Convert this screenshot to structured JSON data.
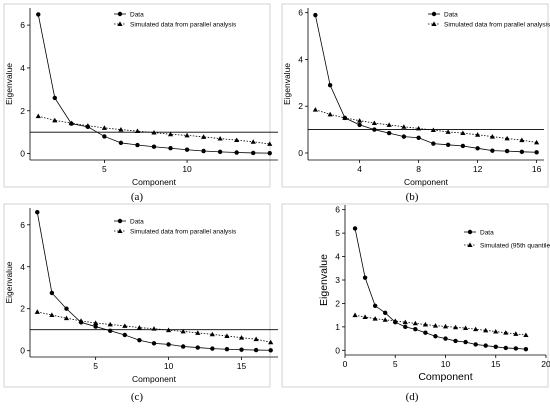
{
  "chart_data": [
    {
      "type": "scatter",
      "panel": "(a)",
      "caption": "(a)",
      "xlabel": "Component",
      "ylabel": "Eigenvalue",
      "xlim": [
        0.5,
        15.5
      ],
      "ylim": [
        -0.3,
        6.8
      ],
      "xticks": [
        5,
        10
      ],
      "yticks": [
        0,
        2,
        4,
        6
      ],
      "grid": false,
      "legend_position": "top-right",
      "reference_line": 1,
      "series": [
        {
          "name": "Data",
          "marker": "circle",
          "x": [
            1,
            2,
            3,
            4,
            5,
            6,
            7,
            8,
            9,
            10,
            11,
            12,
            13,
            14,
            15
          ],
          "y": [
            6.5,
            2.6,
            1.4,
            1.25,
            0.8,
            0.5,
            0.4,
            0.32,
            0.25,
            0.18,
            0.12,
            0.08,
            0.05,
            0.03,
            0.02
          ]
        },
        {
          "name": "Simulated data from parallel analysis",
          "marker": "triangle",
          "x": [
            1,
            2,
            3,
            4,
            5,
            6,
            7,
            8,
            9,
            10,
            11,
            12,
            13,
            14,
            15
          ],
          "y": [
            1.75,
            1.55,
            1.42,
            1.3,
            1.2,
            1.12,
            1.05,
            0.98,
            0.9,
            0.85,
            0.78,
            0.7,
            0.63,
            0.55,
            0.45
          ]
        }
      ]
    },
    {
      "type": "scatter",
      "panel": "(b)",
      "caption": "(b)",
      "xlabel": "Component",
      "ylabel": "Eigenvalue",
      "xlim": [
        0.5,
        16.5
      ],
      "ylim": [
        -0.3,
        6.2
      ],
      "xticks": [
        4,
        8,
        12,
        16
      ],
      "yticks": [
        0,
        2,
        4,
        6
      ],
      "grid": false,
      "legend_position": "top-right",
      "reference_line": 1,
      "series": [
        {
          "name": "Data",
          "marker": "circle",
          "x": [
            1,
            2,
            3,
            4,
            5,
            6,
            7,
            8,
            9,
            10,
            11,
            12,
            13,
            14,
            15,
            16
          ],
          "y": [
            5.9,
            2.9,
            1.5,
            1.2,
            1.0,
            0.85,
            0.7,
            0.65,
            0.4,
            0.35,
            0.3,
            0.2,
            0.1,
            0.08,
            0.05,
            0.03
          ]
        },
        {
          "name": "Simulated data from parallel analysis",
          "marker": "triangle",
          "x": [
            1,
            2,
            3,
            4,
            5,
            6,
            7,
            8,
            9,
            10,
            11,
            12,
            13,
            14,
            15,
            16
          ],
          "y": [
            1.85,
            1.65,
            1.5,
            1.38,
            1.28,
            1.2,
            1.12,
            1.05,
            0.98,
            0.9,
            0.85,
            0.78,
            0.7,
            0.62,
            0.55,
            0.45
          ]
        }
      ]
    },
    {
      "type": "scatter",
      "panel": "(c)",
      "caption": "(c)",
      "xlabel": "Component",
      "ylabel": "Eigenvalue",
      "xlim": [
        0.5,
        17.5
      ],
      "ylim": [
        -0.3,
        6.8
      ],
      "xticks": [
        5,
        10,
        15
      ],
      "yticks": [
        0,
        2,
        4,
        6
      ],
      "grid": false,
      "legend_position": "top-right",
      "reference_line": 1,
      "series": [
        {
          "name": "Data",
          "marker": "circle",
          "x": [
            1,
            2,
            3,
            4,
            5,
            6,
            7,
            8,
            9,
            10,
            11,
            12,
            13,
            14,
            15,
            16,
            17
          ],
          "y": [
            6.6,
            2.75,
            2.0,
            1.35,
            1.15,
            0.95,
            0.75,
            0.5,
            0.35,
            0.3,
            0.2,
            0.15,
            0.1,
            0.07,
            0.05,
            0.03,
            0.02
          ]
        },
        {
          "name": "Simulated data from parallel analysis",
          "marker": "triangle",
          "x": [
            1,
            2,
            3,
            4,
            5,
            6,
            7,
            8,
            9,
            10,
            11,
            12,
            13,
            14,
            15,
            16,
            17
          ],
          "y": [
            1.85,
            1.7,
            1.55,
            1.42,
            1.32,
            1.25,
            1.18,
            1.1,
            1.05,
            0.98,
            0.92,
            0.85,
            0.78,
            0.7,
            0.62,
            0.55,
            0.4
          ]
        }
      ]
    },
    {
      "type": "scatter",
      "panel": "(d)",
      "caption": "(d)",
      "xlabel": "Component",
      "ylabel": "Eigenvalue",
      "xlim": [
        0,
        20
      ],
      "ylim": [
        -0.2,
        6.2
      ],
      "xticks": [
        0,
        5,
        10,
        15,
        20
      ],
      "yticks": [
        0,
        1,
        2,
        3,
        4,
        5,
        6
      ],
      "grid": false,
      "legend_position": "top-right",
      "reference_line": null,
      "series": [
        {
          "name": "Data",
          "marker": "circle",
          "x": [
            1,
            2,
            3,
            4,
            5,
            6,
            7,
            8,
            9,
            10,
            11,
            12,
            13,
            14,
            15,
            16,
            17,
            18
          ],
          "y": [
            5.2,
            3.1,
            1.9,
            1.6,
            1.2,
            1.0,
            0.9,
            0.75,
            0.6,
            0.5,
            0.4,
            0.35,
            0.25,
            0.2,
            0.15,
            0.1,
            0.08,
            0.05
          ]
        },
        {
          "name": "Simulated (95th quantile)",
          "marker": "triangle",
          "x": [
            1,
            2,
            3,
            4,
            5,
            6,
            7,
            8,
            9,
            10,
            11,
            12,
            13,
            14,
            15,
            16,
            17,
            18
          ],
          "y": [
            1.5,
            1.42,
            1.35,
            1.3,
            1.25,
            1.2,
            1.15,
            1.1,
            1.05,
            1.02,
            0.98,
            0.95,
            0.9,
            0.85,
            0.8,
            0.75,
            0.7,
            0.65
          ]
        }
      ]
    }
  ]
}
